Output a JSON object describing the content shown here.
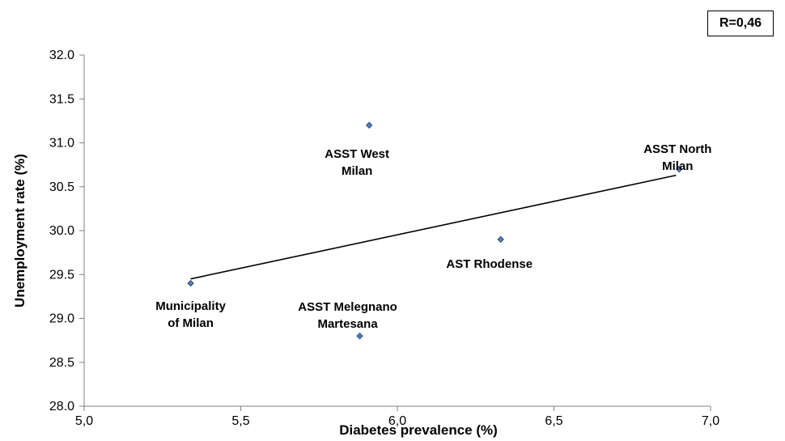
{
  "r_label": "R=0,46",
  "chart_data": {
    "type": "scatter",
    "xlabel": "Diabetes prevalence (%)",
    "ylabel": "Unemployment rate (%)",
    "xlim": [
      5.0,
      7.0
    ],
    "ylim": [
      28.0,
      32.0
    ],
    "x_ticks": [
      "5,0",
      "5,5",
      "6,0",
      "6,5",
      "7,0"
    ],
    "y_ticks": [
      "28.0",
      "28.5",
      "29.0",
      "29.5",
      "30.0",
      "30.5",
      "31.0",
      "31.5",
      "32.0"
    ],
    "grid": false,
    "marker_color": "#4f81bd",
    "points": [
      {
        "label": "Municipality of Milan",
        "label_lines": [
          "Municipality",
          "of Milan"
        ],
        "x": 5.34,
        "y": 29.4
      },
      {
        "label": "ASST Melegnano Martesana",
        "label_lines": [
          "ASST Melegnano",
          "Martesana"
        ],
        "x": 5.88,
        "y": 28.8
      },
      {
        "label": "ASST West Milan",
        "label_lines": [
          "ASST West",
          "Milan"
        ],
        "x": 5.91,
        "y": 31.2
      },
      {
        "label": "AST Rhodense",
        "label_lines": [
          "AST Rhodense"
        ],
        "x": 6.33,
        "y": 29.9
      },
      {
        "label": "ASST North Milan",
        "label_lines": [
          "ASST North",
          "Milan"
        ],
        "x": 6.9,
        "y": 30.7
      }
    ],
    "trendline": {
      "x": [
        5.34,
        6.89
      ],
      "y": [
        29.45,
        30.63
      ]
    }
  }
}
